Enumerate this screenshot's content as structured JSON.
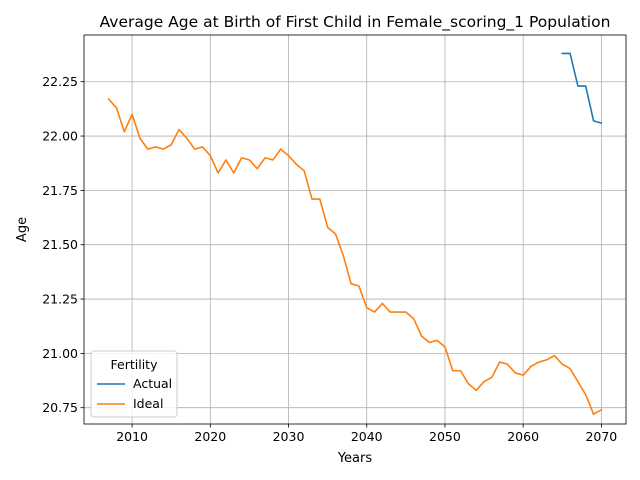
{
  "chart_data": {
    "type": "line",
    "title": "Average Age at Birth of First Child in Female_scoring_1 Population",
    "xlabel": "Years",
    "ylabel": "Age",
    "xlim": [
      2003.85,
      2073.15
    ],
    "ylim": [
      20.675,
      22.465
    ],
    "xticks": [
      2010,
      2020,
      2030,
      2040,
      2050,
      2060,
      2070
    ],
    "yticks": [
      20.75,
      21.0,
      21.25,
      21.5,
      21.75,
      22.0,
      22.25
    ],
    "xtick_labels": [
      "2010",
      "2020",
      "2030",
      "2040",
      "2050",
      "2060",
      "2070"
    ],
    "ytick_labels": [
      "20.75",
      "21.00",
      "21.25",
      "21.50",
      "21.75",
      "22.00",
      "22.25"
    ],
    "grid": true,
    "legend": {
      "title": "Fertility",
      "placement": "lower-left"
    },
    "series": [
      {
        "name": "Actual",
        "color": "#1f77b4",
        "x": [
          2065,
          2066,
          2067,
          2068,
          2069,
          2070
        ],
        "values": [
          22.38,
          22.38,
          22.23,
          22.23,
          22.07,
          22.06
        ]
      },
      {
        "name": "Ideal",
        "color": "#ff7f0e",
        "x": [
          2007,
          2008,
          2009,
          2010,
          2011,
          2012,
          2013,
          2014,
          2015,
          2016,
          2017,
          2018,
          2019,
          2020,
          2021,
          2022,
          2023,
          2024,
          2025,
          2026,
          2027,
          2028,
          2029,
          2030,
          2031,
          2032,
          2033,
          2034,
          2035,
          2036,
          2037,
          2038,
          2039,
          2040,
          2041,
          2042,
          2043,
          2044,
          2045,
          2046,
          2047,
          2048,
          2049,
          2050,
          2051,
          2052,
          2053,
          2054,
          2055,
          2056,
          2057,
          2058,
          2059,
          2060,
          2061,
          2062,
          2063,
          2064,
          2065,
          2066,
          2067,
          2068,
          2069,
          2070
        ],
        "values": [
          22.17,
          22.13,
          22.02,
          22.1,
          21.99,
          21.94,
          21.95,
          21.94,
          21.96,
          22.03,
          21.99,
          21.94,
          21.95,
          21.91,
          21.83,
          21.89,
          21.83,
          21.9,
          21.89,
          21.85,
          21.9,
          21.89,
          21.94,
          21.91,
          21.87,
          21.84,
          21.71,
          21.71,
          21.58,
          21.55,
          21.45,
          21.32,
          21.31,
          21.21,
          21.19,
          21.23,
          21.19,
          21.19,
          21.19,
          21.16,
          21.08,
          21.05,
          21.06,
          21.03,
          20.92,
          20.92,
          20.86,
          20.83,
          20.87,
          20.89,
          20.96,
          20.95,
          20.91,
          20.9,
          20.94,
          20.96,
          20.97,
          20.99,
          20.95,
          20.93,
          20.87,
          20.81,
          20.72,
          20.74
        ]
      }
    ]
  }
}
